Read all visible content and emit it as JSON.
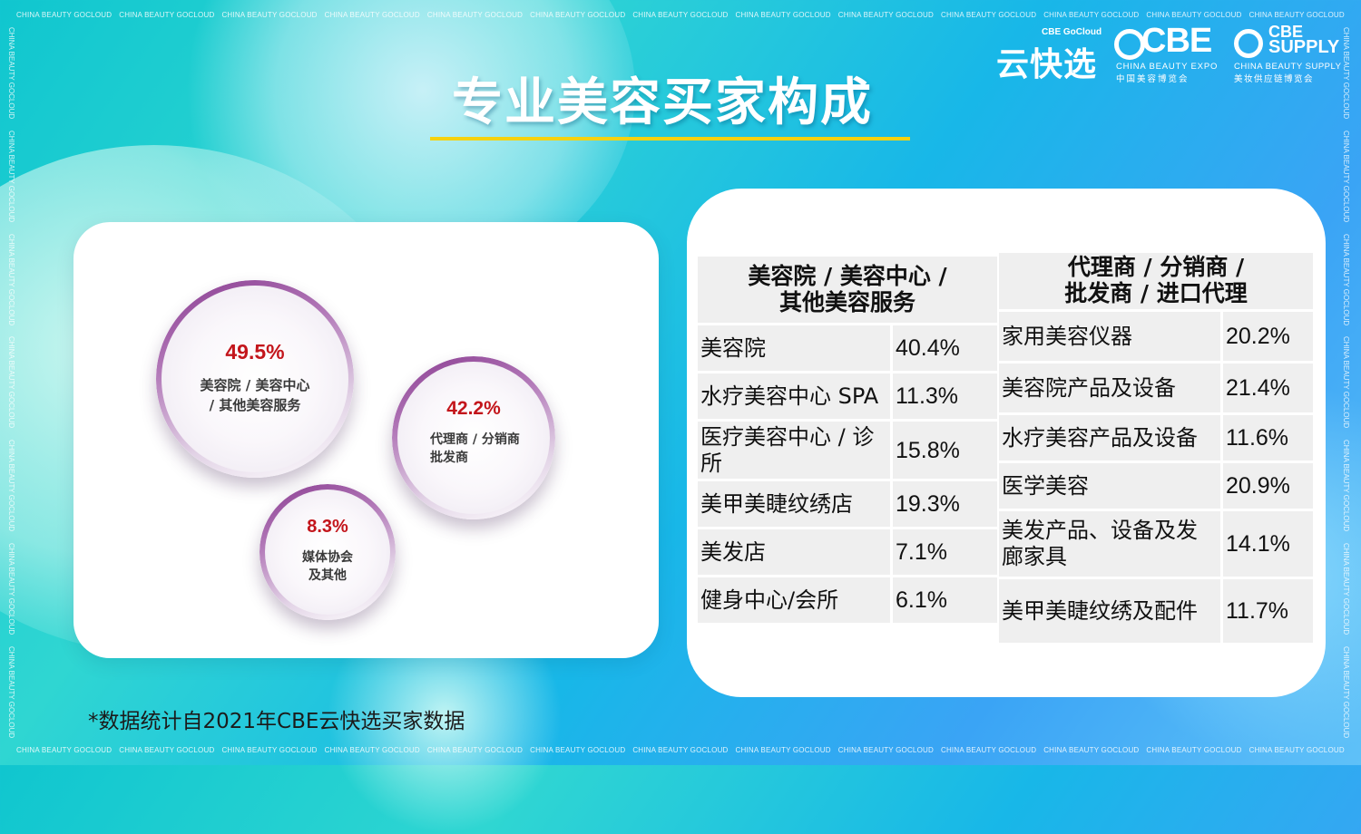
{
  "watermark": "CHINA BEAUTY GOCLOUD",
  "title": "专业美容买家构成",
  "logos": {
    "gocloud_small": "CBE GoCloud",
    "gocloud_big": "云快选",
    "cbe_word": "CBE",
    "cbe_en": "CHINA BEAUTY EXPO",
    "cbe_cn": "中国美容博览会",
    "supply_word1": "CBE",
    "supply_word2": "SUPPLY",
    "supply_en": "CHINA BEAUTY SUPPLY",
    "supply_cn": "美妆供应链博览会"
  },
  "bubbles": [
    {
      "percent": "49.5%",
      "label_lines": [
        "美容院 / 美容中心",
        "/ 其他美容服务"
      ]
    },
    {
      "percent": "42.2%",
      "label_lines": [
        "代理商 / 分销商",
        "批发商"
      ]
    },
    {
      "percent": "8.3%",
      "label_lines": [
        "媒体协会",
        "及其他"
      ]
    }
  ],
  "table_left": {
    "header_lines": [
      "美容院 / 美容中心 /",
      "其他美容服务"
    ],
    "rows": [
      {
        "name": "美容院",
        "value": "40.4%"
      },
      {
        "name": "水疗美容中心 SPA",
        "value": "11.3%"
      },
      {
        "name": "医疗美容中心 / 诊所",
        "value": "15.8%"
      },
      {
        "name": "美甲美睫纹绣店",
        "value": "19.3%"
      },
      {
        "name": "美发店",
        "value": "7.1%"
      },
      {
        "name": "健身中心/会所",
        "value": "6.1%"
      }
    ]
  },
  "table_right": {
    "header_lines": [
      "代理商 / 分销商 /",
      "批发商 / 进口代理"
    ],
    "rows": [
      {
        "name": "家用美容仪器",
        "value": "20.2%"
      },
      {
        "name": "美容院产品及设备",
        "value": "21.4%"
      },
      {
        "name": "水疗美容产品及设备",
        "value": "11.6%"
      },
      {
        "name": "医学美容",
        "value": "20.9%"
      },
      {
        "name": "美发产品、设备及发廊家具",
        "value": "14.1%"
      },
      {
        "name": "美甲美睫纹绣及配件",
        "value": "11.7%"
      }
    ]
  },
  "footnote": "*数据统计自2021年CBE云快选买家数据"
}
